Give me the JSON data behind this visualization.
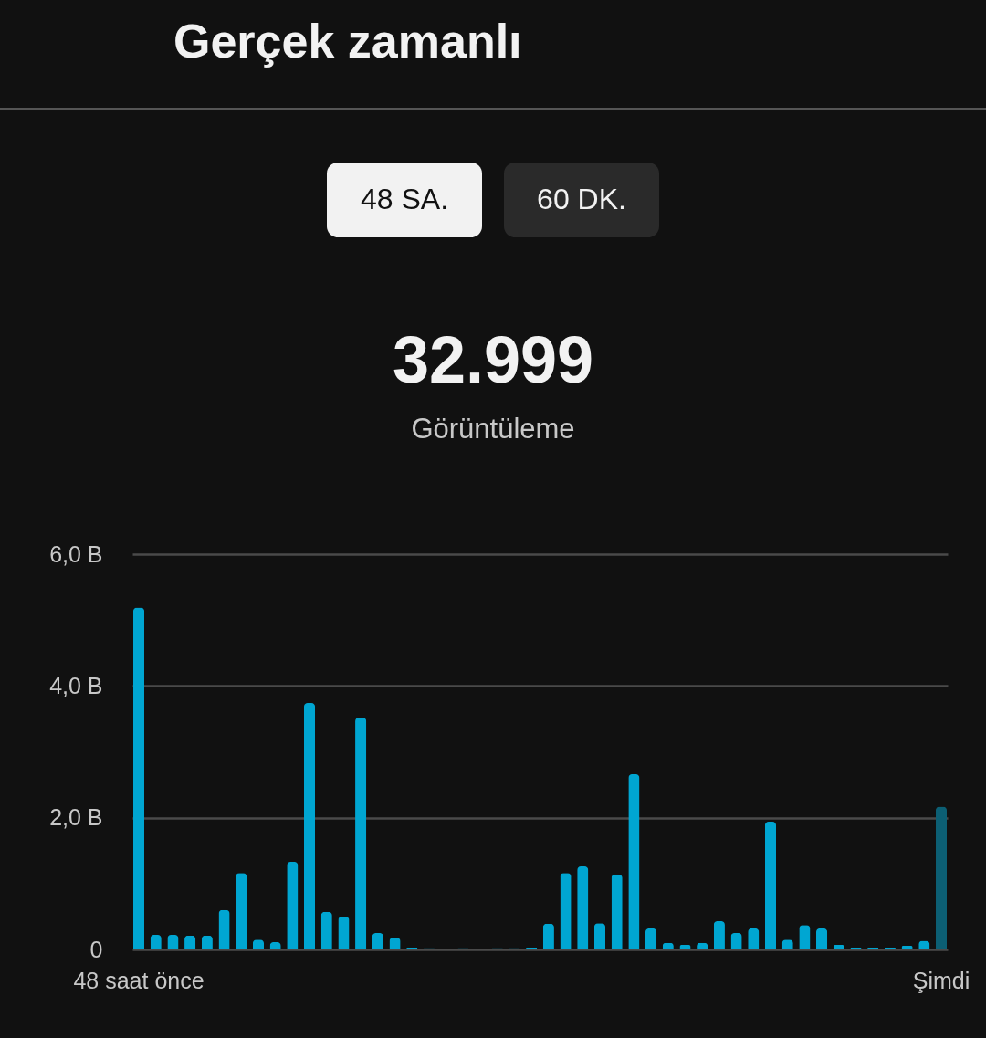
{
  "chart_data": {
    "type": "bar",
    "title": "Gerçek zamanlı",
    "annotations": [
      "48 SA.",
      "60 DK.",
      "32.999",
      "Görüntüleme"
    ],
    "categories": [
      "48 saat önce",
      null,
      null,
      null,
      null,
      null,
      null,
      null,
      null,
      null,
      null,
      null,
      null,
      null,
      null,
      null,
      null,
      null,
      null,
      null,
      null,
      null,
      null,
      null,
      null,
      null,
      null,
      null,
      null,
      null,
      null,
      null,
      null,
      null,
      null,
      null,
      null,
      null,
      null,
      null,
      null,
      null,
      null,
      null,
      null,
      null,
      null,
      "Şimdi"
    ],
    "values": [
      5.19,
      0.22,
      0.22,
      0.21,
      0.21,
      0.6,
      1.16,
      0.15,
      0.11,
      1.33,
      3.74,
      0.57,
      0.5,
      3.52,
      0.25,
      0.18,
      0.03,
      0.02,
      0,
      0.02,
      0,
      0.02,
      0.02,
      0.03,
      0.39,
      1.16,
      1.26,
      0.4,
      1.14,
      2.66,
      0.32,
      0.1,
      0.07,
      0.1,
      0.43,
      0.25,
      0.32,
      1.94,
      0.15,
      0.37,
      0.32,
      0.07,
      0.03,
      0.03,
      0.03,
      0.06,
      0.13,
      2.17
    ],
    "colors": [
      "#00a6d2",
      "#00a6d2",
      "#00a6d2",
      "#00a6d2",
      "#00a6d2",
      "#00a6d2",
      "#00a6d2",
      "#00a6d2",
      "#00a6d2",
      "#00a6d2",
      "#00a6d2",
      "#00a6d2",
      "#00a6d2",
      "#00a6d2",
      "#00a6d2",
      "#00a6d2",
      "#00a6d2",
      "#00a6d2",
      "#00a6d2",
      "#00a6d2",
      "#00a6d2",
      "#00a6d2",
      "#00a6d2",
      "#00a6d2",
      "#00a6d2",
      "#00a6d2",
      "#00a6d2",
      "#00a6d2",
      "#00a6d2",
      "#00a6d2",
      "#00a6d2",
      "#00a6d2",
      "#00a6d2",
      "#00a6d2",
      "#00a6d2",
      "#00a6d2",
      "#00a6d2",
      "#00a6d2",
      "#00a6d2",
      "#00a6d2",
      "#00a6d2",
      "#00a6d2",
      "#00a6d2",
      "#00a6d2",
      "#00a6d2",
      "#00a6d2",
      "#00a6d2",
      "#0c5f74"
    ],
    "ylim": [
      0,
      6
    ],
    "yticks": [
      0,
      {
        "value": 2,
        "label": "2,0 B"
      },
      {
        "value": 4,
        "label": "4,0 B"
      },
      {
        "value": 6,
        "label": "6,0 B"
      }
    ],
    "grid": "y",
    "legend": false
  }
}
